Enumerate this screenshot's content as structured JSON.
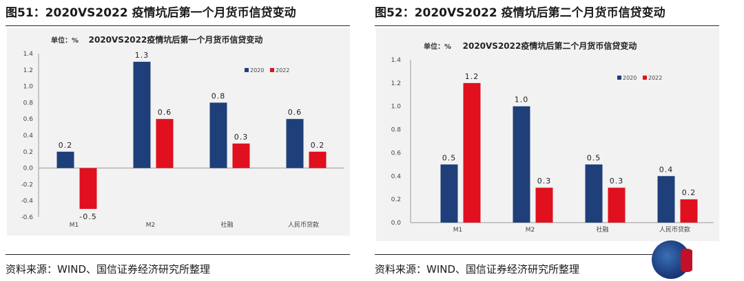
{
  "panels": [
    {
      "figure_title": "图51：2020VS2022 疫情坑后第一个月货币信贷变动",
      "source": "资料来源：WIND、国信证券经济研究所整理",
      "chart_data": {
        "type": "bar",
        "title": "2020VS2022疫情坑后第一个月货币信贷变动",
        "unit_label": "单位：%",
        "categories": [
          "M1",
          "M2",
          "社融",
          "人民币贷款"
        ],
        "series": [
          {
            "name": "2020",
            "values": [
              0.2,
              1.3,
              0.8,
              0.6
            ],
            "color": "#1f3f7a"
          },
          {
            "name": "2022",
            "values": [
              -0.5,
              0.6,
              0.3,
              0.2
            ],
            "color": "#e0101e"
          }
        ],
        "data_labels": [
          [
            "0.2",
            "1.3",
            "0.8",
            "0.6"
          ],
          [
            "-0.5",
            "0.6",
            "0.3",
            "0.2"
          ]
        ],
        "ylim": [
          -0.6,
          1.4
        ],
        "yticks": [
          "1.4",
          "1.2",
          "1.0",
          "0.8",
          "0.6",
          "0.4",
          "0.2",
          "0.0",
          "-0.2",
          "-0.4",
          "-0.6"
        ],
        "ytick_values": [
          1.4,
          1.2,
          1.0,
          0.8,
          0.6,
          0.4,
          0.2,
          0.0,
          -0.2,
          -0.4,
          -0.6
        ],
        "legend_position": "top-right",
        "grid": false
      }
    },
    {
      "figure_title": "图52：2020VS2022 疫情坑后第二个月货币信贷变动",
      "source": "资料来源：WIND、国信证券经济研究所整理",
      "chart_data": {
        "type": "bar",
        "title": "2020VS2022疫情坑后第二个月货币信贷变动",
        "unit_label": "单位：%",
        "categories": [
          "M1",
          "M2",
          "社融",
          "人民币贷款"
        ],
        "series": [
          {
            "name": "2020",
            "values": [
              0.5,
              1.0,
              0.5,
              0.4
            ],
            "color": "#1f3f7a"
          },
          {
            "name": "2022",
            "values": [
              1.2,
              0.3,
              0.3,
              0.2
            ],
            "color": "#e0101e"
          }
        ],
        "data_labels": [
          [
            "0.5",
            "1.0",
            "0.5",
            "0.4"
          ],
          [
            "1.2",
            "0.3",
            "0.3",
            "0.2"
          ]
        ],
        "ylim": [
          0,
          1.4
        ],
        "yticks": [
          "1.4",
          "1.2",
          "1.0",
          "0.8",
          "0.6",
          "0.4",
          "0.2",
          "0.0"
        ],
        "ytick_values": [
          1.4,
          1.2,
          1.0,
          0.8,
          0.6,
          0.4,
          0.2,
          0.0
        ],
        "legend_position": "top-right",
        "grid": false
      }
    }
  ]
}
